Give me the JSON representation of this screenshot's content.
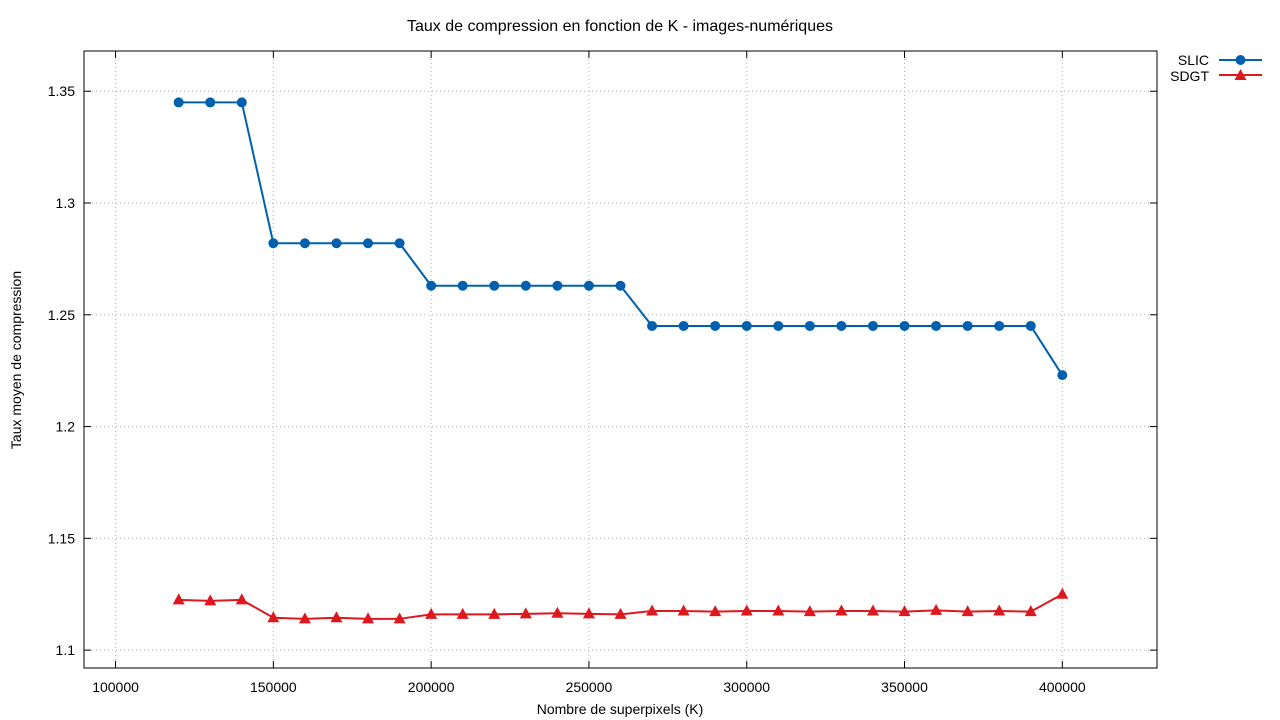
{
  "chart_data": {
    "type": "line",
    "title": "Taux de compression en fonction de K - images-numériques",
    "xlabel": "Nombre de superpixels (K)",
    "ylabel": "Taux moyen de compression",
    "xlim": [
      90000,
      430000
    ],
    "ylim": [
      1.092,
      1.368
    ],
    "xticks": [
      100000,
      150000,
      200000,
      250000,
      300000,
      350000,
      400000
    ],
    "yticks": [
      1.1,
      1.15,
      1.2,
      1.25,
      1.3,
      1.35
    ],
    "xtick_labels": [
      "100000",
      "150000",
      "200000",
      "250000",
      "300000",
      "350000",
      "400000"
    ],
    "ytick_labels": [
      "1.1",
      "1.15",
      "1.2",
      "1.25",
      "1.3",
      "1.35"
    ],
    "grid": true,
    "legend_position": "outside-top-right",
    "x": [
      120000,
      130000,
      140000,
      150000,
      160000,
      170000,
      180000,
      190000,
      200000,
      210000,
      220000,
      230000,
      240000,
      250000,
      260000,
      270000,
      280000,
      290000,
      300000,
      310000,
      320000,
      330000,
      340000,
      350000,
      360000,
      370000,
      380000,
      390000,
      400000
    ],
    "series": [
      {
        "name": "SLIC",
        "color": "#0060ad",
        "marker": "circle",
        "values": [
          1.345,
          1.345,
          1.345,
          1.282,
          1.282,
          1.282,
          1.282,
          1.282,
          1.263,
          1.263,
          1.263,
          1.263,
          1.263,
          1.263,
          1.263,
          1.245,
          1.245,
          1.245,
          1.245,
          1.245,
          1.245,
          1.245,
          1.245,
          1.245,
          1.245,
          1.245,
          1.245,
          1.245,
          1.223
        ]
      },
      {
        "name": "SDGT",
        "color": "#dd181f",
        "marker": "triangle",
        "values": [
          1.1225,
          1.122,
          1.1225,
          1.1145,
          1.114,
          1.1145,
          1.114,
          1.114,
          1.116,
          1.116,
          1.116,
          1.1162,
          1.1165,
          1.1162,
          1.116,
          1.1175,
          1.1175,
          1.1172,
          1.1175,
          1.1175,
          1.1172,
          1.1175,
          1.1175,
          1.1172,
          1.1178,
          1.1172,
          1.1175,
          1.1172,
          1.125
        ]
      }
    ]
  }
}
